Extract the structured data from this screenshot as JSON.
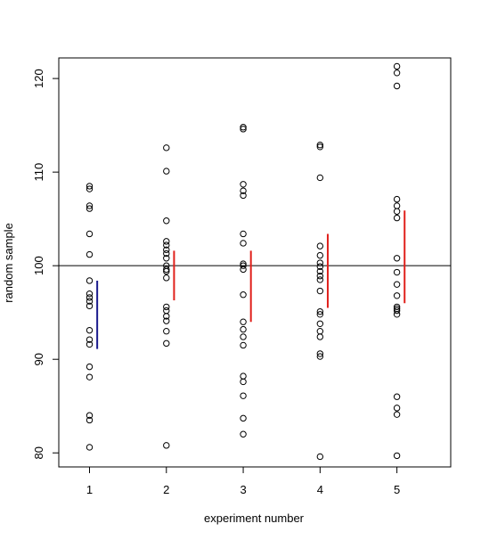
{
  "chart_data": {
    "type": "scatter",
    "title": "",
    "xlabel": "experiment number",
    "ylabel": "random sample",
    "xlim": [
      0.6,
      5.7
    ],
    "ylim": [
      78.5,
      122.2
    ],
    "xticks": [
      1,
      2,
      3,
      4,
      5
    ],
    "xtick_labels": [
      "1",
      "2",
      "3",
      "4",
      "5"
    ],
    "yticks": [
      80,
      90,
      100,
      110,
      120
    ],
    "ytick_labels": [
      "80",
      "90",
      "100",
      "110",
      "120"
    ],
    "reference_line": 100,
    "grid": false,
    "points": [
      {
        "x": 1,
        "y": 80.6
      },
      {
        "x": 1,
        "y": 83.5
      },
      {
        "x": 1,
        "y": 84.0
      },
      {
        "x": 1,
        "y": 88.1
      },
      {
        "x": 1,
        "y": 89.2
      },
      {
        "x": 1,
        "y": 91.6
      },
      {
        "x": 1,
        "y": 92.1
      },
      {
        "x": 1,
        "y": 93.1
      },
      {
        "x": 1,
        "y": 95.7
      },
      {
        "x": 1,
        "y": 96.2
      },
      {
        "x": 1,
        "y": 96.6
      },
      {
        "x": 1,
        "y": 97.0
      },
      {
        "x": 1,
        "y": 98.4
      },
      {
        "x": 1,
        "y": 101.2
      },
      {
        "x": 1,
        "y": 103.4
      },
      {
        "x": 1,
        "y": 106.1
      },
      {
        "x": 1,
        "y": 106.4
      },
      {
        "x": 1,
        "y": 108.2
      },
      {
        "x": 1,
        "y": 108.5
      },
      {
        "x": 2,
        "y": 80.8
      },
      {
        "x": 2,
        "y": 91.7
      },
      {
        "x": 2,
        "y": 93.0
      },
      {
        "x": 2,
        "y": 94.1
      },
      {
        "x": 2,
        "y": 94.6
      },
      {
        "x": 2,
        "y": 95.2
      },
      {
        "x": 2,
        "y": 95.6
      },
      {
        "x": 2,
        "y": 98.7
      },
      {
        "x": 2,
        "y": 99.4
      },
      {
        "x": 2,
        "y": 99.6
      },
      {
        "x": 2,
        "y": 100.0
      },
      {
        "x": 2,
        "y": 100.8
      },
      {
        "x": 2,
        "y": 101.3
      },
      {
        "x": 2,
        "y": 101.7
      },
      {
        "x": 2,
        "y": 102.2
      },
      {
        "x": 2,
        "y": 102.6
      },
      {
        "x": 2,
        "y": 104.8
      },
      {
        "x": 2,
        "y": 110.1
      },
      {
        "x": 2,
        "y": 112.6
      },
      {
        "x": 3,
        "y": 82.0
      },
      {
        "x": 3,
        "y": 83.7
      },
      {
        "x": 3,
        "y": 86.1
      },
      {
        "x": 3,
        "y": 87.6
      },
      {
        "x": 3,
        "y": 88.2
      },
      {
        "x": 3,
        "y": 91.5
      },
      {
        "x": 3,
        "y": 92.4
      },
      {
        "x": 3,
        "y": 93.2
      },
      {
        "x": 3,
        "y": 94.0
      },
      {
        "x": 3,
        "y": 96.9
      },
      {
        "x": 3,
        "y": 99.6
      },
      {
        "x": 3,
        "y": 100.0
      },
      {
        "x": 3,
        "y": 100.2
      },
      {
        "x": 3,
        "y": 102.4
      },
      {
        "x": 3,
        "y": 103.4
      },
      {
        "x": 3,
        "y": 107.5
      },
      {
        "x": 3,
        "y": 108.0
      },
      {
        "x": 3,
        "y": 108.7
      },
      {
        "x": 3,
        "y": 114.6
      },
      {
        "x": 3,
        "y": 114.8
      },
      {
        "x": 4,
        "y": 79.6
      },
      {
        "x": 4,
        "y": 90.3
      },
      {
        "x": 4,
        "y": 90.6
      },
      {
        "x": 4,
        "y": 92.4
      },
      {
        "x": 4,
        "y": 93.0
      },
      {
        "x": 4,
        "y": 93.8
      },
      {
        "x": 4,
        "y": 94.8
      },
      {
        "x": 4,
        "y": 95.1
      },
      {
        "x": 4,
        "y": 97.3
      },
      {
        "x": 4,
        "y": 98.5
      },
      {
        "x": 4,
        "y": 98.9
      },
      {
        "x": 4,
        "y": 99.4
      },
      {
        "x": 4,
        "y": 99.9
      },
      {
        "x": 4,
        "y": 100.3
      },
      {
        "x": 4,
        "y": 101.1
      },
      {
        "x": 4,
        "y": 102.1
      },
      {
        "x": 4,
        "y": 109.4
      },
      {
        "x": 4,
        "y": 112.7
      },
      {
        "x": 4,
        "y": 112.9
      },
      {
        "x": 5,
        "y": 79.7
      },
      {
        "x": 5,
        "y": 84.1
      },
      {
        "x": 5,
        "y": 84.8
      },
      {
        "x": 5,
        "y": 86.0
      },
      {
        "x": 5,
        "y": 94.8
      },
      {
        "x": 5,
        "y": 95.2
      },
      {
        "x": 5,
        "y": 95.4
      },
      {
        "x": 5,
        "y": 95.6
      },
      {
        "x": 5,
        "y": 96.8
      },
      {
        "x": 5,
        "y": 98.0
      },
      {
        "x": 5,
        "y": 99.3
      },
      {
        "x": 5,
        "y": 100.8
      },
      {
        "x": 5,
        "y": 105.1
      },
      {
        "x": 5,
        "y": 105.8
      },
      {
        "x": 5,
        "y": 106.4
      },
      {
        "x": 5,
        "y": 107.1
      },
      {
        "x": 5,
        "y": 119.2
      },
      {
        "x": 5,
        "y": 120.6
      },
      {
        "x": 5,
        "y": 121.3
      }
    ],
    "intervals": [
      {
        "x": 1.1,
        "low": 91.1,
        "high": 98.4,
        "color": "#1a1a8c"
      },
      {
        "x": 2.1,
        "low": 96.3,
        "high": 101.6,
        "color": "#e0201b"
      },
      {
        "x": 3.1,
        "low": 94.0,
        "high": 101.6,
        "color": "#e0201b"
      },
      {
        "x": 4.1,
        "low": 95.5,
        "high": 103.4,
        "color": "#e0201b"
      },
      {
        "x": 5.1,
        "low": 96.0,
        "high": 105.9,
        "color": "#e0201b"
      }
    ]
  }
}
